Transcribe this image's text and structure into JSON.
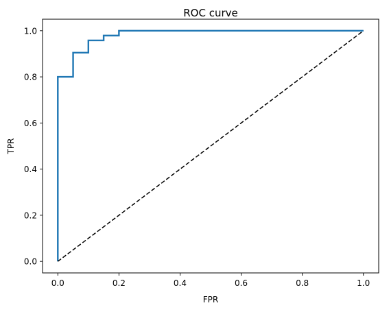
{
  "chart_data": {
    "type": "line",
    "title": "ROC curve",
    "xlabel": "FPR",
    "ylabel": "TPR",
    "xlim": [
      -0.05,
      1.05
    ],
    "ylim": [
      -0.05,
      1.05
    ],
    "xticks": [
      0.0,
      0.2,
      0.4,
      0.6,
      0.8,
      1.0
    ],
    "yticks": [
      0.0,
      0.2,
      0.4,
      0.6,
      0.8,
      1.0
    ],
    "xtick_labels": [
      "0.0",
      "0.2",
      "0.4",
      "0.6",
      "0.8",
      "1.0"
    ],
    "ytick_labels": [
      "0.0",
      "0.2",
      "0.4",
      "0.6",
      "0.8",
      "1.0"
    ],
    "grid": false,
    "legend": "none",
    "series": [
      {
        "color": "#1f77b4",
        "style": "solid",
        "x": [
          0.0,
          0.0,
          0.05,
          0.05,
          0.1,
          0.1,
          0.15,
          0.15,
          0.2,
          0.2,
          1.0
        ],
        "y": [
          0.0,
          0.8,
          0.8,
          0.905,
          0.905,
          0.958,
          0.958,
          0.979,
          0.979,
          1.0,
          1.0
        ]
      },
      {
        "color": "#000000",
        "style": "dashed",
        "x": [
          0.0,
          1.0
        ],
        "y": [
          0.0,
          1.0
        ]
      }
    ]
  }
}
